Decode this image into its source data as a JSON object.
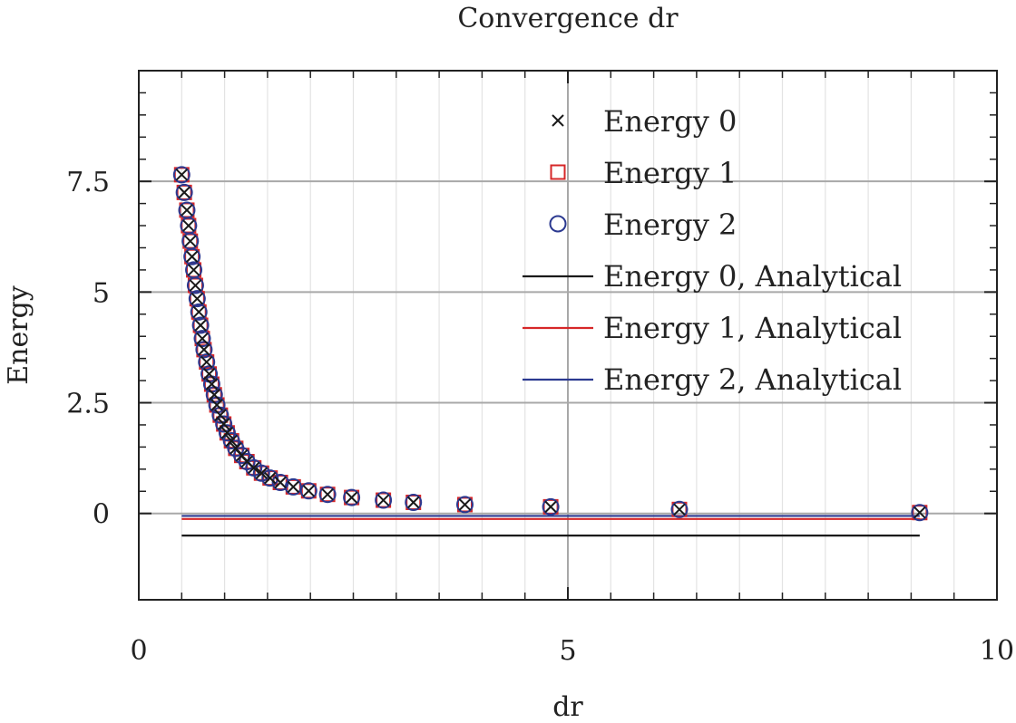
{
  "chart_data": {
    "type": "scatter",
    "title": "Convergence dr",
    "xlabel": "dr",
    "ylabel": "Energy",
    "xlim": [
      0,
      10
    ],
    "ylim": [
      -1.95,
      10
    ],
    "x_ticks": [
      0,
      5,
      10
    ],
    "y_ticks": [
      0,
      2.5,
      5,
      7.5
    ],
    "x_tick_labels": [
      "0",
      "5",
      "10"
    ],
    "y_tick_labels": [
      "0",
      "2.5",
      "5",
      "7.5"
    ],
    "grid": true,
    "legend_position": "top-right",
    "series": [
      {
        "name": "Energy 0",
        "kind": "marker",
        "marker": "cross",
        "color": "#1a1a1a",
        "x": [
          0.5,
          0.53,
          0.56,
          0.58,
          0.6,
          0.62,
          0.64,
          0.66,
          0.68,
          0.7,
          0.72,
          0.74,
          0.76,
          0.79,
          0.82,
          0.85,
          0.88,
          0.91,
          0.95,
          0.99,
          1.03,
          1.08,
          1.13,
          1.2,
          1.26,
          1.34,
          1.43,
          1.53,
          1.65,
          1.8,
          1.98,
          2.2,
          2.48,
          2.85,
          3.2,
          3.8,
          4.8,
          6.3,
          9.1
        ],
        "y": [
          7.65,
          7.25,
          6.85,
          6.5,
          6.15,
          5.8,
          5.5,
          5.15,
          4.85,
          4.55,
          4.25,
          3.95,
          3.7,
          3.42,
          3.15,
          2.92,
          2.68,
          2.45,
          2.22,
          2.02,
          1.82,
          1.64,
          1.47,
          1.31,
          1.17,
          1.03,
          0.91,
          0.8,
          0.7,
          0.6,
          0.51,
          0.43,
          0.36,
          0.3,
          0.25,
          0.2,
          0.15,
          0.09,
          0.02
        ]
      },
      {
        "name": "Energy 1",
        "kind": "marker",
        "marker": "square",
        "color": "#d62728",
        "x": [
          0.5,
          0.53,
          0.56,
          0.58,
          0.6,
          0.62,
          0.64,
          0.66,
          0.68,
          0.7,
          0.72,
          0.74,
          0.76,
          0.79,
          0.82,
          0.85,
          0.88,
          0.91,
          0.95,
          0.99,
          1.03,
          1.08,
          1.13,
          1.2,
          1.26,
          1.34,
          1.43,
          1.53,
          1.65,
          1.8,
          1.98,
          2.2,
          2.48,
          2.85,
          3.2,
          3.8,
          4.8,
          6.3,
          9.1
        ],
        "y": [
          7.65,
          7.25,
          6.85,
          6.5,
          6.15,
          5.8,
          5.5,
          5.15,
          4.85,
          4.55,
          4.25,
          3.95,
          3.7,
          3.42,
          3.15,
          2.92,
          2.68,
          2.45,
          2.22,
          2.02,
          1.82,
          1.64,
          1.47,
          1.31,
          1.17,
          1.03,
          0.91,
          0.8,
          0.7,
          0.6,
          0.51,
          0.43,
          0.36,
          0.3,
          0.25,
          0.2,
          0.15,
          0.09,
          0.02
        ]
      },
      {
        "name": "Energy 2",
        "kind": "marker",
        "marker": "circle",
        "color": "#2b3990",
        "x": [
          0.5,
          0.53,
          0.56,
          0.58,
          0.6,
          0.62,
          0.64,
          0.66,
          0.68,
          0.7,
          0.72,
          0.74,
          0.76,
          0.79,
          0.82,
          0.85,
          0.88,
          0.91,
          0.95,
          0.99,
          1.03,
          1.08,
          1.13,
          1.2,
          1.26,
          1.34,
          1.43,
          1.53,
          1.65,
          1.8,
          1.98,
          2.2,
          2.48,
          2.85,
          3.2,
          3.8,
          4.8,
          6.3,
          9.1
        ],
        "y": [
          7.65,
          7.25,
          6.85,
          6.5,
          6.15,
          5.8,
          5.5,
          5.15,
          4.85,
          4.55,
          4.25,
          3.95,
          3.7,
          3.42,
          3.15,
          2.92,
          2.68,
          2.45,
          2.22,
          2.02,
          1.82,
          1.64,
          1.47,
          1.31,
          1.17,
          1.03,
          0.91,
          0.8,
          0.7,
          0.6,
          0.51,
          0.43,
          0.36,
          0.3,
          0.25,
          0.2,
          0.15,
          0.09,
          0.02
        ]
      },
      {
        "name": "Energy 0, Analytical",
        "kind": "line",
        "color": "#1a1a1a",
        "x": [
          0.5,
          9.1
        ],
        "y": [
          -0.5,
          -0.5
        ]
      },
      {
        "name": "Energy 1, Analytical",
        "kind": "line",
        "color": "#d62728",
        "x": [
          0.5,
          9.1
        ],
        "y": [
          -0.125,
          -0.125
        ]
      },
      {
        "name": "Energy 2, Analytical",
        "kind": "line",
        "color": "#2b3990",
        "x": [
          0.5,
          9.1
        ],
        "y": [
          -0.056,
          -0.056
        ]
      }
    ]
  }
}
